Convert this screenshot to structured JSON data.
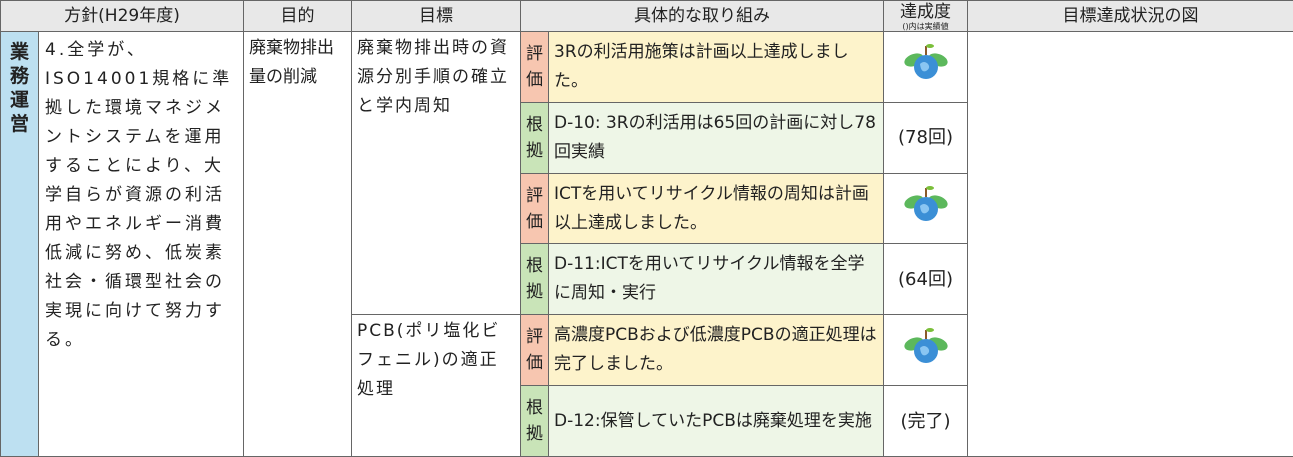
{
  "header": {
    "columns": [
      "方針(H29年度)",
      "目的",
      "目標",
      "具体的な取り組み",
      "達成度",
      "目標達成状況の図"
    ],
    "achievement_note": "()内は実績値"
  },
  "side_label": "業務運営",
  "policy": "4.全学が、ISO14001規格に準拠した環境マネジメントシステムを運用することにより、大学自らが資源の利活用やエネルギー消費低減に努め、低炭素社会・循環型社会の実現に向けて努力する。",
  "purpose": "廃棄物排出量の削減",
  "goals": [
    "廃棄物排出時の資源分別手順の確立と学内周知",
    "PCB(ポリ塩化ビフェニル)の適正処理"
  ],
  "rows": [
    {
      "tag": "評価",
      "text": "3Rの利活用施策は計画以上達成しました。"
    },
    {
      "tag": "根拠",
      "text": "D-10: 3Rの利活用は65回の計画に対し78回実績",
      "achievement": "(78回)"
    },
    {
      "tag": "評価",
      "text": "ICTを用いてリサイクル情報の周知は計画以上達成しました。"
    },
    {
      "tag": "根拠",
      "text": "D-11:ICTを用いてリサイクル情報を全学に周知・実行",
      "achievement": "(64回)"
    },
    {
      "tag": "評価",
      "text": "高濃度PCBおよび低濃度PCBの適正処理は完了しました。"
    },
    {
      "tag": "根拠",
      "text": "D-12:保管していたPCBは廃棄処理を実施",
      "achievement": "(完了)"
    }
  ]
}
